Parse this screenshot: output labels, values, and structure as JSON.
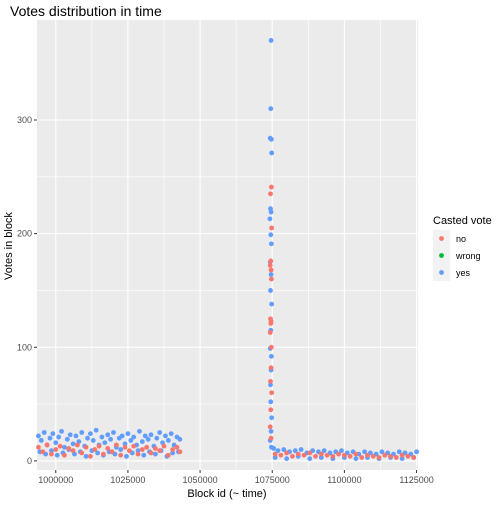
{
  "chart_data": {
    "type": "scatter",
    "title": "Votes distribution in time",
    "xlabel": "Block id (~ time)",
    "ylabel": "Votes in block",
    "xlim": [
      993500,
      1125500
    ],
    "ylim": [
      -8,
      388
    ],
    "x_ticks": [
      1000000,
      1025000,
      1050000,
      1075000,
      1100000,
      1125000
    ],
    "x_tick_labels": [
      "1000000",
      "1025000",
      "1050000",
      "1075000",
      "1100000",
      "1125000"
    ],
    "y_ticks": [
      0,
      100,
      200,
      300
    ],
    "y_tick_labels": [
      "0",
      "100",
      "200",
      "300"
    ],
    "grid": true,
    "legend_position": "right",
    "legend": {
      "title": "Casted vote",
      "entries": [
        {
          "name": "no",
          "color": "#F8766D"
        },
        {
          "name": "wrong",
          "color": "#00BA38"
        },
        {
          "name": "yes",
          "color": "#619CFF"
        }
      ]
    },
    "series": [
      {
        "name": "yes",
        "color": "#619CFF",
        "points": [
          [
            994000,
            22
          ],
          [
            995000,
            18
          ],
          [
            996000,
            25
          ],
          [
            997000,
            14
          ],
          [
            998000,
            20
          ],
          [
            999000,
            24
          ],
          [
            1000000,
            16
          ],
          [
            1001000,
            21
          ],
          [
            1002000,
            26
          ],
          [
            1003000,
            12
          ],
          [
            1004000,
            19
          ],
          [
            1005000,
            23
          ],
          [
            1006000,
            15
          ],
          [
            1007000,
            22
          ],
          [
            1008000,
            17
          ],
          [
            1009000,
            25
          ],
          [
            1010000,
            13
          ],
          [
            1011000,
            20
          ],
          [
            1012000,
            24
          ],
          [
            1013000,
            18
          ],
          [
            1014000,
            27
          ],
          [
            1015000,
            14
          ],
          [
            1016000,
            21
          ],
          [
            1017000,
            16
          ],
          [
            1018000,
            23
          ],
          [
            1019000,
            19
          ],
          [
            1020000,
            25
          ],
          [
            1021000,
            12
          ],
          [
            1022000,
            20
          ],
          [
            1023000,
            22
          ],
          [
            1024000,
            15
          ],
          [
            1025000,
            24
          ],
          [
            1026000,
            18
          ],
          [
            1027000,
            21
          ],
          [
            1028000,
            14
          ],
          [
            1029000,
            26
          ],
          [
            1030000,
            17
          ],
          [
            1031000,
            22
          ],
          [
            1032000,
            19
          ],
          [
            1033000,
            23
          ],
          [
            1034000,
            13
          ],
          [
            1035000,
            20
          ],
          [
            1036000,
            25
          ],
          [
            1037000,
            16
          ],
          [
            1038000,
            22
          ],
          [
            1039000,
            18
          ],
          [
            1040000,
            24
          ],
          [
            1041000,
            14
          ],
          [
            1042000,
            21
          ],
          [
            1043000,
            19
          ],
          [
            994500,
            8
          ],
          [
            996500,
            6
          ],
          [
            998500,
            9
          ],
          [
            1000500,
            5
          ],
          [
            1002500,
            7
          ],
          [
            1004500,
            10
          ],
          [
            1006500,
            6
          ],
          [
            1008500,
            8
          ],
          [
            1010500,
            4
          ],
          [
            1012500,
            9
          ],
          [
            1014500,
            7
          ],
          [
            1016500,
            5
          ],
          [
            1018500,
            8
          ],
          [
            1020500,
            6
          ],
          [
            1022500,
            10
          ],
          [
            1024500,
            4
          ],
          [
            1026500,
            7
          ],
          [
            1028500,
            9
          ],
          [
            1030500,
            5
          ],
          [
            1032500,
            8
          ],
          [
            1034500,
            6
          ],
          [
            1036500,
            9
          ],
          [
            1038500,
            4
          ],
          [
            1040500,
            7
          ],
          [
            1042500,
            8
          ],
          [
            1074600,
            370
          ],
          [
            1074500,
            310
          ],
          [
            1074300,
            284
          ],
          [
            1074700,
            283
          ],
          [
            1074800,
            271
          ],
          [
            1074400,
            222
          ],
          [
            1074600,
            219
          ],
          [
            1074200,
            213
          ],
          [
            1074500,
            199
          ],
          [
            1074700,
            191
          ],
          [
            1074300,
            175
          ],
          [
            1074600,
            164
          ],
          [
            1074400,
            150
          ],
          [
            1074800,
            138
          ],
          [
            1074500,
            115
          ],
          [
            1074300,
            99
          ],
          [
            1074700,
            92
          ],
          [
            1074600,
            80
          ],
          [
            1074400,
            67
          ],
          [
            1074500,
            52
          ],
          [
            1074800,
            38
          ],
          [
            1074600,
            26
          ],
          [
            1074300,
            18
          ],
          [
            1074700,
            12
          ],
          [
            1075500,
            11
          ],
          [
            1077000,
            9
          ],
          [
            1079000,
            10
          ],
          [
            1081000,
            8
          ],
          [
            1083000,
            9
          ],
          [
            1085000,
            10
          ],
          [
            1087000,
            7
          ],
          [
            1089000,
            9
          ],
          [
            1091000,
            8
          ],
          [
            1093000,
            9
          ],
          [
            1095000,
            7
          ],
          [
            1097000,
            8
          ],
          [
            1099000,
            9
          ],
          [
            1101000,
            7
          ],
          [
            1103000,
            8
          ],
          [
            1105000,
            6
          ],
          [
            1107000,
            8
          ],
          [
            1109000,
            7
          ],
          [
            1111000,
            6
          ],
          [
            1113000,
            8
          ],
          [
            1115000,
            7
          ],
          [
            1117000,
            6
          ],
          [
            1119000,
            8
          ],
          [
            1121000,
            7
          ],
          [
            1123000,
            6
          ],
          [
            1125000,
            8
          ],
          [
            1076000,
            3
          ],
          [
            1080000,
            2
          ],
          [
            1084000,
            4
          ],
          [
            1088000,
            2
          ],
          [
            1092000,
            3
          ],
          [
            1096000,
            2
          ],
          [
            1100000,
            3
          ],
          [
            1104000,
            2
          ],
          [
            1108000,
            3
          ],
          [
            1112000,
            2
          ],
          [
            1116000,
            3
          ],
          [
            1120000,
            2
          ],
          [
            1124000,
            3
          ]
        ]
      },
      {
        "name": "no",
        "color": "#F8766D",
        "points": [
          [
            994000,
            12
          ],
          [
            995500,
            8
          ],
          [
            997000,
            14
          ],
          [
            998500,
            6
          ],
          [
            1000000,
            10
          ],
          [
            1001500,
            13
          ],
          [
            1003000,
            5
          ],
          [
            1004500,
            11
          ],
          [
            1006000,
            9
          ],
          [
            1007500,
            14
          ],
          [
            1009000,
            7
          ],
          [
            1010500,
            12
          ],
          [
            1012000,
            4
          ],
          [
            1013500,
            10
          ],
          [
            1015000,
            13
          ],
          [
            1016500,
            6
          ],
          [
            1018000,
            11
          ],
          [
            1019500,
            8
          ],
          [
            1021000,
            14
          ],
          [
            1022500,
            5
          ],
          [
            1024000,
            12
          ],
          [
            1025500,
            9
          ],
          [
            1027000,
            13
          ],
          [
            1028500,
            6
          ],
          [
            1030000,
            10
          ],
          [
            1031500,
            12
          ],
          [
            1033000,
            7
          ],
          [
            1034500,
            11
          ],
          [
            1036000,
            9
          ],
          [
            1037500,
            13
          ],
          [
            1039000,
            5
          ],
          [
            1040500,
            10
          ],
          [
            1042000,
            12
          ],
          [
            1043000,
            8
          ],
          [
            1074700,
            241
          ],
          [
            1074400,
            235
          ],
          [
            1074800,
            205
          ],
          [
            1074500,
            176
          ],
          [
            1074300,
            172
          ],
          [
            1074600,
            168
          ],
          [
            1074700,
            160
          ],
          [
            1074400,
            125
          ],
          [
            1074600,
            123
          ],
          [
            1074500,
            121
          ],
          [
            1074300,
            113
          ],
          [
            1074700,
            100
          ],
          [
            1074600,
            82
          ],
          [
            1074400,
            70
          ],
          [
            1074800,
            60
          ],
          [
            1074500,
            45
          ],
          [
            1074300,
            30
          ],
          [
            1074600,
            20
          ],
          [
            1076000,
            6
          ],
          [
            1078000,
            5
          ],
          [
            1080000,
            7
          ],
          [
            1082000,
            4
          ],
          [
            1084000,
            6
          ],
          [
            1086000,
            5
          ],
          [
            1088000,
            7
          ],
          [
            1090000,
            4
          ],
          [
            1092000,
            6
          ],
          [
            1094000,
            5
          ],
          [
            1096000,
            4
          ],
          [
            1098000,
            6
          ],
          [
            1100000,
            5
          ],
          [
            1102000,
            4
          ],
          [
            1104000,
            6
          ],
          [
            1106000,
            3
          ],
          [
            1108000,
            5
          ],
          [
            1110000,
            4
          ],
          [
            1112000,
            3
          ],
          [
            1114000,
            5
          ],
          [
            1116000,
            4
          ],
          [
            1118000,
            3
          ],
          [
            1120000,
            5
          ],
          [
            1122000,
            4
          ],
          [
            1124000,
            3
          ]
        ]
      },
      {
        "name": "wrong",
        "color": "#00BA38",
        "points": []
      }
    ]
  }
}
